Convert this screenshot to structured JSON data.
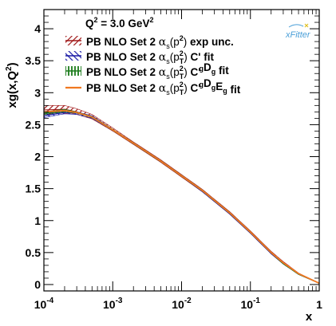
{
  "chart_data": {
    "type": "line",
    "title": "Q^2 = 3.0 GeV^2",
    "xlabel": "x",
    "ylabel": "xg(x,Q^2)",
    "x_scale": "log",
    "xlim": [
      0.0001,
      1
    ],
    "ylim": [
      -0.1,
      4.3
    ],
    "x_ticks": [
      {
        "value": 0.0001,
        "base": "10",
        "exp": "-4"
      },
      {
        "value": 0.001,
        "base": "10",
        "exp": "-3"
      },
      {
        "value": 0.01,
        "base": "10",
        "exp": "-2"
      },
      {
        "value": 0.1,
        "base": "10",
        "exp": "-1"
      },
      {
        "value": 1,
        "base": "1",
        "exp": ""
      }
    ],
    "y_ticks": [
      {
        "value": 0,
        "label": "0"
      },
      {
        "value": 0.5,
        "label": "0.5"
      },
      {
        "value": 1,
        "label": "1"
      },
      {
        "value": 1.5,
        "label": "1.5"
      },
      {
        "value": 2,
        "label": "2"
      },
      {
        "value": 2.5,
        "label": "2.5"
      },
      {
        "value": 3,
        "label": "3"
      },
      {
        "value": 3.5,
        "label": "3.5"
      },
      {
        "value": 4,
        "label": "4"
      }
    ],
    "grid": false,
    "legend_position": "top-left",
    "x": [
      0.0001,
      0.0002,
      0.0003,
      0.0005,
      0.001,
      0.002,
      0.005,
      0.01,
      0.02,
      0.05,
      0.1,
      0.2,
      0.3,
      0.5,
      1
    ],
    "series": [
      {
        "name": "PB NLO Set 2 αs(p2) exp unc.",
        "color": "#a01818",
        "style": "hatched band",
        "center": [
          2.73,
          2.74,
          2.7,
          2.62,
          2.42,
          2.21,
          1.93,
          1.7,
          1.47,
          1.12,
          0.82,
          0.5,
          0.34,
          0.17,
          0.02
        ],
        "lower": [
          2.66,
          2.68,
          2.66,
          2.59,
          2.4,
          2.19,
          1.91,
          1.68,
          1.45,
          1.1,
          0.8,
          0.48,
          0.32,
          0.16,
          0.02
        ],
        "upper": [
          2.8,
          2.8,
          2.75,
          2.66,
          2.45,
          2.23,
          1.95,
          1.72,
          1.49,
          1.14,
          0.84,
          0.52,
          0.36,
          0.18,
          0.02
        ]
      },
      {
        "name": "PB NLO Set 2 αs(p2) C' fit",
        "color": "#1a1aa6",
        "style": "hatched band",
        "center": [
          2.64,
          2.69,
          2.68,
          2.62,
          2.42,
          2.21,
          1.93,
          1.7,
          1.46,
          1.11,
          0.81,
          0.49,
          0.33,
          0.16,
          0.02
        ],
        "lower": [
          2.61,
          2.67,
          2.66,
          2.6,
          2.41,
          2.2,
          1.92,
          1.69,
          1.45,
          1.1,
          0.8,
          0.48,
          0.32,
          0.16,
          0.02
        ],
        "upper": [
          2.67,
          2.71,
          2.7,
          2.64,
          2.43,
          2.22,
          1.94,
          1.71,
          1.47,
          1.12,
          0.82,
          0.5,
          0.34,
          0.17,
          0.02
        ]
      },
      {
        "name": "PB NLO Set 2 αs(p2) C'gDg fit",
        "color": "#1a7a1a",
        "style": "hatched band",
        "center": [
          2.68,
          2.72,
          2.69,
          2.62,
          2.42,
          2.21,
          1.93,
          1.7,
          1.47,
          1.12,
          0.82,
          0.5,
          0.33,
          0.16,
          0.02
        ],
        "lower": [
          2.66,
          2.7,
          2.68,
          2.61,
          2.41,
          2.2,
          1.92,
          1.69,
          1.46,
          1.11,
          0.81,
          0.49,
          0.32,
          0.16,
          0.02
        ],
        "upper": [
          2.7,
          2.74,
          2.7,
          2.63,
          2.43,
          2.22,
          1.94,
          1.71,
          1.48,
          1.13,
          0.83,
          0.51,
          0.34,
          0.17,
          0.02
        ]
      },
      {
        "name": "PB NLO Set 2 αs(p2) C'gDgEg fit",
        "color": "#f07820",
        "style": "line",
        "center": [
          2.7,
          2.72,
          2.69,
          2.62,
          2.42,
          2.21,
          1.93,
          1.7,
          1.47,
          1.12,
          0.82,
          0.5,
          0.34,
          0.17,
          0.02
        ]
      }
    ],
    "legend": [
      {
        "prefix": "PB NLO Set 2 ",
        "alpha": "α",
        "sub": "s",
        "arg": "(p",
        "sup2": "2",
        "subT": "",
        "close": ")",
        "suffix": " exp unc.",
        "cprime": false,
        "gsub": ""
      },
      {
        "prefix": "PB NLO Set 2 ",
        "alpha": "α",
        "sub": "s",
        "arg": "(p",
        "sup2": "2",
        "subT": "T",
        "close": ")",
        "suffix": " fit",
        "cprime": true,
        "gsub": ""
      },
      {
        "prefix": "PB NLO Set 2 ",
        "alpha": "α",
        "sub": "s",
        "arg": "(p",
        "sup2": "2",
        "subT": "T",
        "close": ")",
        "suffix": " fit",
        "cprime": true,
        "gsub": "D"
      },
      {
        "prefix": "PB NLO Set 2 ",
        "alpha": "α",
        "sub": "s",
        "arg": "(p",
        "sup2": "2",
        "subT": "T",
        "close": ")",
        "suffix": " fit",
        "cprime": true,
        "gsub": "DE"
      }
    ],
    "annotation_logo": "xFitter"
  }
}
